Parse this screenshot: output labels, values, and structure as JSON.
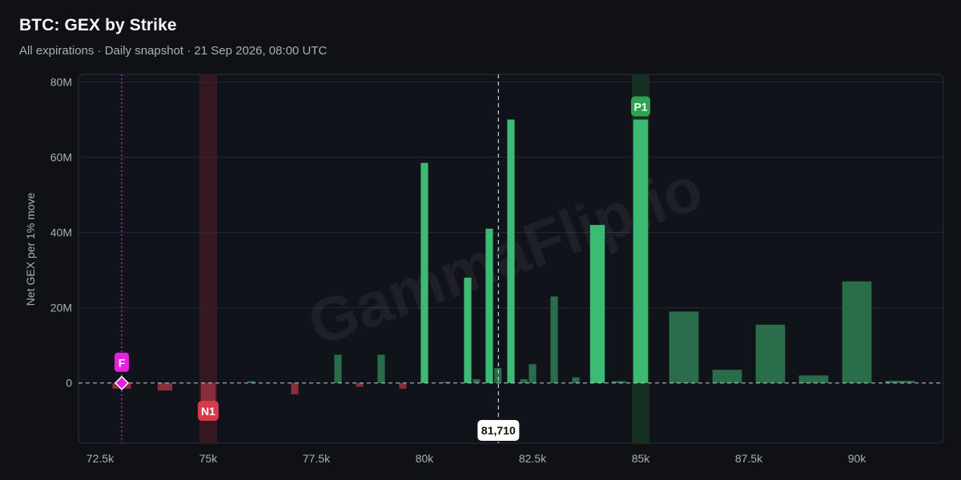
{
  "header": {
    "title": "BTC: GEX by Strike",
    "subtitle": "All expirations · Daily snapshot · 21 Sep 2026, 08:00 UTC"
  },
  "watermark": "GammaFlip.io",
  "colors": {
    "background": "#0f1115",
    "plot_background": "#11131b",
    "positive_bright": "#3dba74",
    "positive_dim": "#2a6d4b",
    "negative": "#8a2e3a",
    "n1_band": "#3a1a22",
    "p1_band": "#163322",
    "flip": "#e81fe0",
    "n1_badge": "#d83a4c",
    "p1_badge": "#2fa34f"
  },
  "chart_data": {
    "type": "bar",
    "title": "BTC: GEX by Strike",
    "xlabel": "",
    "ylabel": "Net GEX per 1% move",
    "xlim": [
      72000,
      92000
    ],
    "ylim": [
      -16000000,
      82000000
    ],
    "x_ticks": [
      72500,
      75000,
      77500,
      80000,
      82500,
      85000,
      87500,
      90000
    ],
    "x_tick_labels": [
      "72.5k",
      "75k",
      "77.5k",
      "80k",
      "82.5k",
      "85k",
      "87.5k",
      "90k"
    ],
    "y_ticks": [
      0,
      20000000,
      40000000,
      60000000,
      80000000
    ],
    "y_tick_labels": [
      "0",
      "20M",
      "40M",
      "60M",
      "80M"
    ],
    "grid": true,
    "strikes": [
      72500,
      73000,
      74000,
      75000,
      76000,
      77000,
      78000,
      78500,
      79000,
      79500,
      80000,
      80500,
      81000,
      81200,
      81500,
      81700,
      82000,
      82300,
      82500,
      83000,
      83500,
      84000,
      84500,
      85000,
      86000,
      87000,
      88000,
      89000,
      90000,
      91000
    ],
    "widths": [
      500,
      500,
      400,
      400,
      200,
      200,
      200,
      200,
      200,
      200,
      200,
      200,
      200,
      200,
      200,
      200,
      200,
      200,
      200,
      200,
      200,
      400,
      400,
      400,
      800,
      800,
      800,
      800,
      800,
      800
    ],
    "values": [
      0,
      -1500000,
      -2000000,
      -5000000,
      500000,
      -3000000,
      7500000,
      -1000000,
      7500000,
      -1500000,
      58500000,
      300000,
      28000000,
      1000000,
      41000000,
      4000000,
      70000000,
      1000000,
      5000000,
      23000000,
      1500000,
      42000000,
      500000,
      70000000,
      19000000,
      3500000,
      15500000,
      2000000,
      27000000,
      600000
    ],
    "emphasis": [
      false,
      false,
      false,
      false,
      false,
      false,
      false,
      false,
      false,
      false,
      true,
      false,
      true,
      false,
      true,
      false,
      true,
      false,
      false,
      false,
      false,
      true,
      false,
      true,
      false,
      false,
      false,
      false,
      false,
      false
    ],
    "current_price": 81710,
    "current_price_label": "81,710",
    "markers": [
      {
        "label": "F",
        "strike": 73000,
        "kind": "flip"
      },
      {
        "label": "N1",
        "strike": 75000,
        "kind": "negative_peak"
      },
      {
        "label": "P1",
        "strike": 85000,
        "kind": "positive_peak"
      }
    ]
  }
}
